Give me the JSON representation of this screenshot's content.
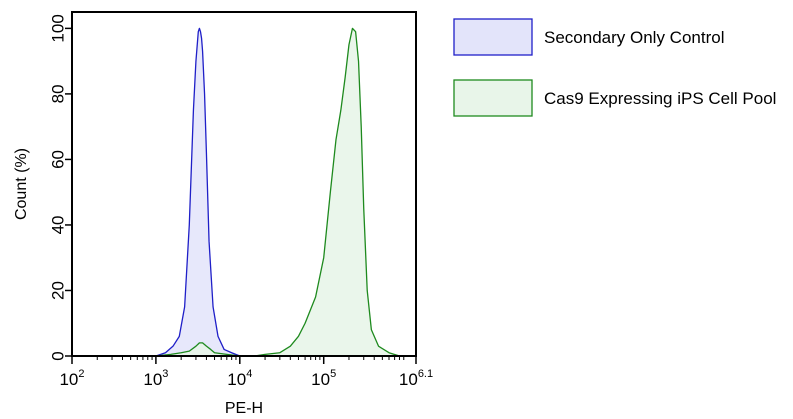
{
  "chart_data": {
    "type": "area",
    "xlabel": "PE-H",
    "ylabel": "Count  (%)",
    "x_scale": "log10",
    "xlim": [
      100,
      1258925
    ],
    "ylim": [
      0,
      105
    ],
    "x_ticks": [
      {
        "value": 100,
        "base": "10",
        "exp": "2"
      },
      {
        "value": 1000,
        "base": "10",
        "exp": "3"
      },
      {
        "value": 10000,
        "base": "10",
        "exp": "4"
      },
      {
        "value": 100000,
        "base": "10",
        "exp": "5"
      },
      {
        "value": 1258925,
        "base": "10",
        "exp": "6.1"
      }
    ],
    "y_ticks": [
      "0",
      "20",
      "40",
      "60",
      "80",
      "100"
    ],
    "grid": false,
    "legend_position": "right",
    "series": [
      {
        "name": "Secondary Only Control",
        "stroke": "#1f1fc8",
        "fill": "#e3e4fa",
        "x": [
          1000,
          1300,
          1600,
          1900,
          2200,
          2500,
          2800,
          3000,
          3200,
          3300,
          3400,
          3500,
          3600,
          3800,
          4000,
          4300,
          4800,
          5500,
          6500,
          8000,
          10000,
          12000
        ],
        "y": [
          0,
          1,
          3,
          6,
          15,
          40,
          75,
          90,
          99,
          100,
          99,
          97,
          93,
          80,
          62,
          35,
          15,
          6,
          2,
          1,
          0,
          0
        ]
      },
      {
        "name": "Cas9 Expressing iPS Cell Pool",
        "stroke": "#1e8a1e",
        "fill": "#e8f5e9",
        "x": [
          1000,
          1500,
          2000,
          2500,
          3000,
          3300,
          3600,
          4000,
          4500,
          5000,
          7000,
          10000,
          15000,
          20000,
          30000,
          40000,
          50000,
          60000,
          80000,
          100000,
          120000,
          140000,
          160000,
          180000,
          200000,
          220000,
          240000,
          260000,
          280000,
          300000,
          330000,
          370000,
          450000,
          600000,
          800000
        ],
        "y": [
          0,
          0.5,
          1,
          1.5,
          3,
          4,
          4,
          3,
          2,
          1,
          0.5,
          0,
          0,
          0.5,
          1,
          3,
          6,
          10,
          18,
          30,
          50,
          66,
          75,
          85,
          95,
          100,
          99,
          90,
          70,
          45,
          20,
          8,
          3,
          1,
          0
        ]
      }
    ]
  }
}
